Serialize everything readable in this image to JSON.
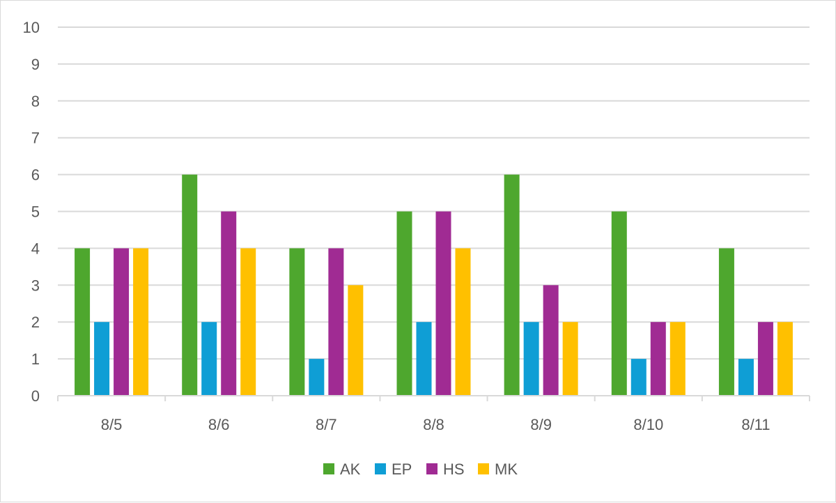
{
  "chart_data": {
    "type": "bar",
    "categories": [
      "8/5",
      "8/6",
      "8/7",
      "8/8",
      "8/9",
      "8/10",
      "8/11"
    ],
    "series": [
      {
        "name": "AK",
        "color": "#4ea72e",
        "values": [
          4,
          6,
          4,
          5,
          6,
          5,
          4
        ]
      },
      {
        "name": "EP",
        "color": "#0f9ed5",
        "values": [
          2,
          2,
          1,
          2,
          2,
          1,
          1
        ]
      },
      {
        "name": "HS",
        "color": "#a02b93",
        "values": [
          4,
          5,
          4,
          5,
          3,
          2,
          2
        ]
      },
      {
        "name": "MK",
        "color": "#ffc000",
        "values": [
          4,
          4,
          3,
          4,
          2,
          2,
          2
        ]
      }
    ],
    "ylim": [
      0,
      10
    ],
    "yticks": [
      0,
      1,
      2,
      3,
      4,
      5,
      6,
      7,
      8,
      9,
      10
    ],
    "grid": true,
    "legend_position": "bottom",
    "gridline_color": "#d9d9d9",
    "axis_color": "#d9d9d9"
  }
}
